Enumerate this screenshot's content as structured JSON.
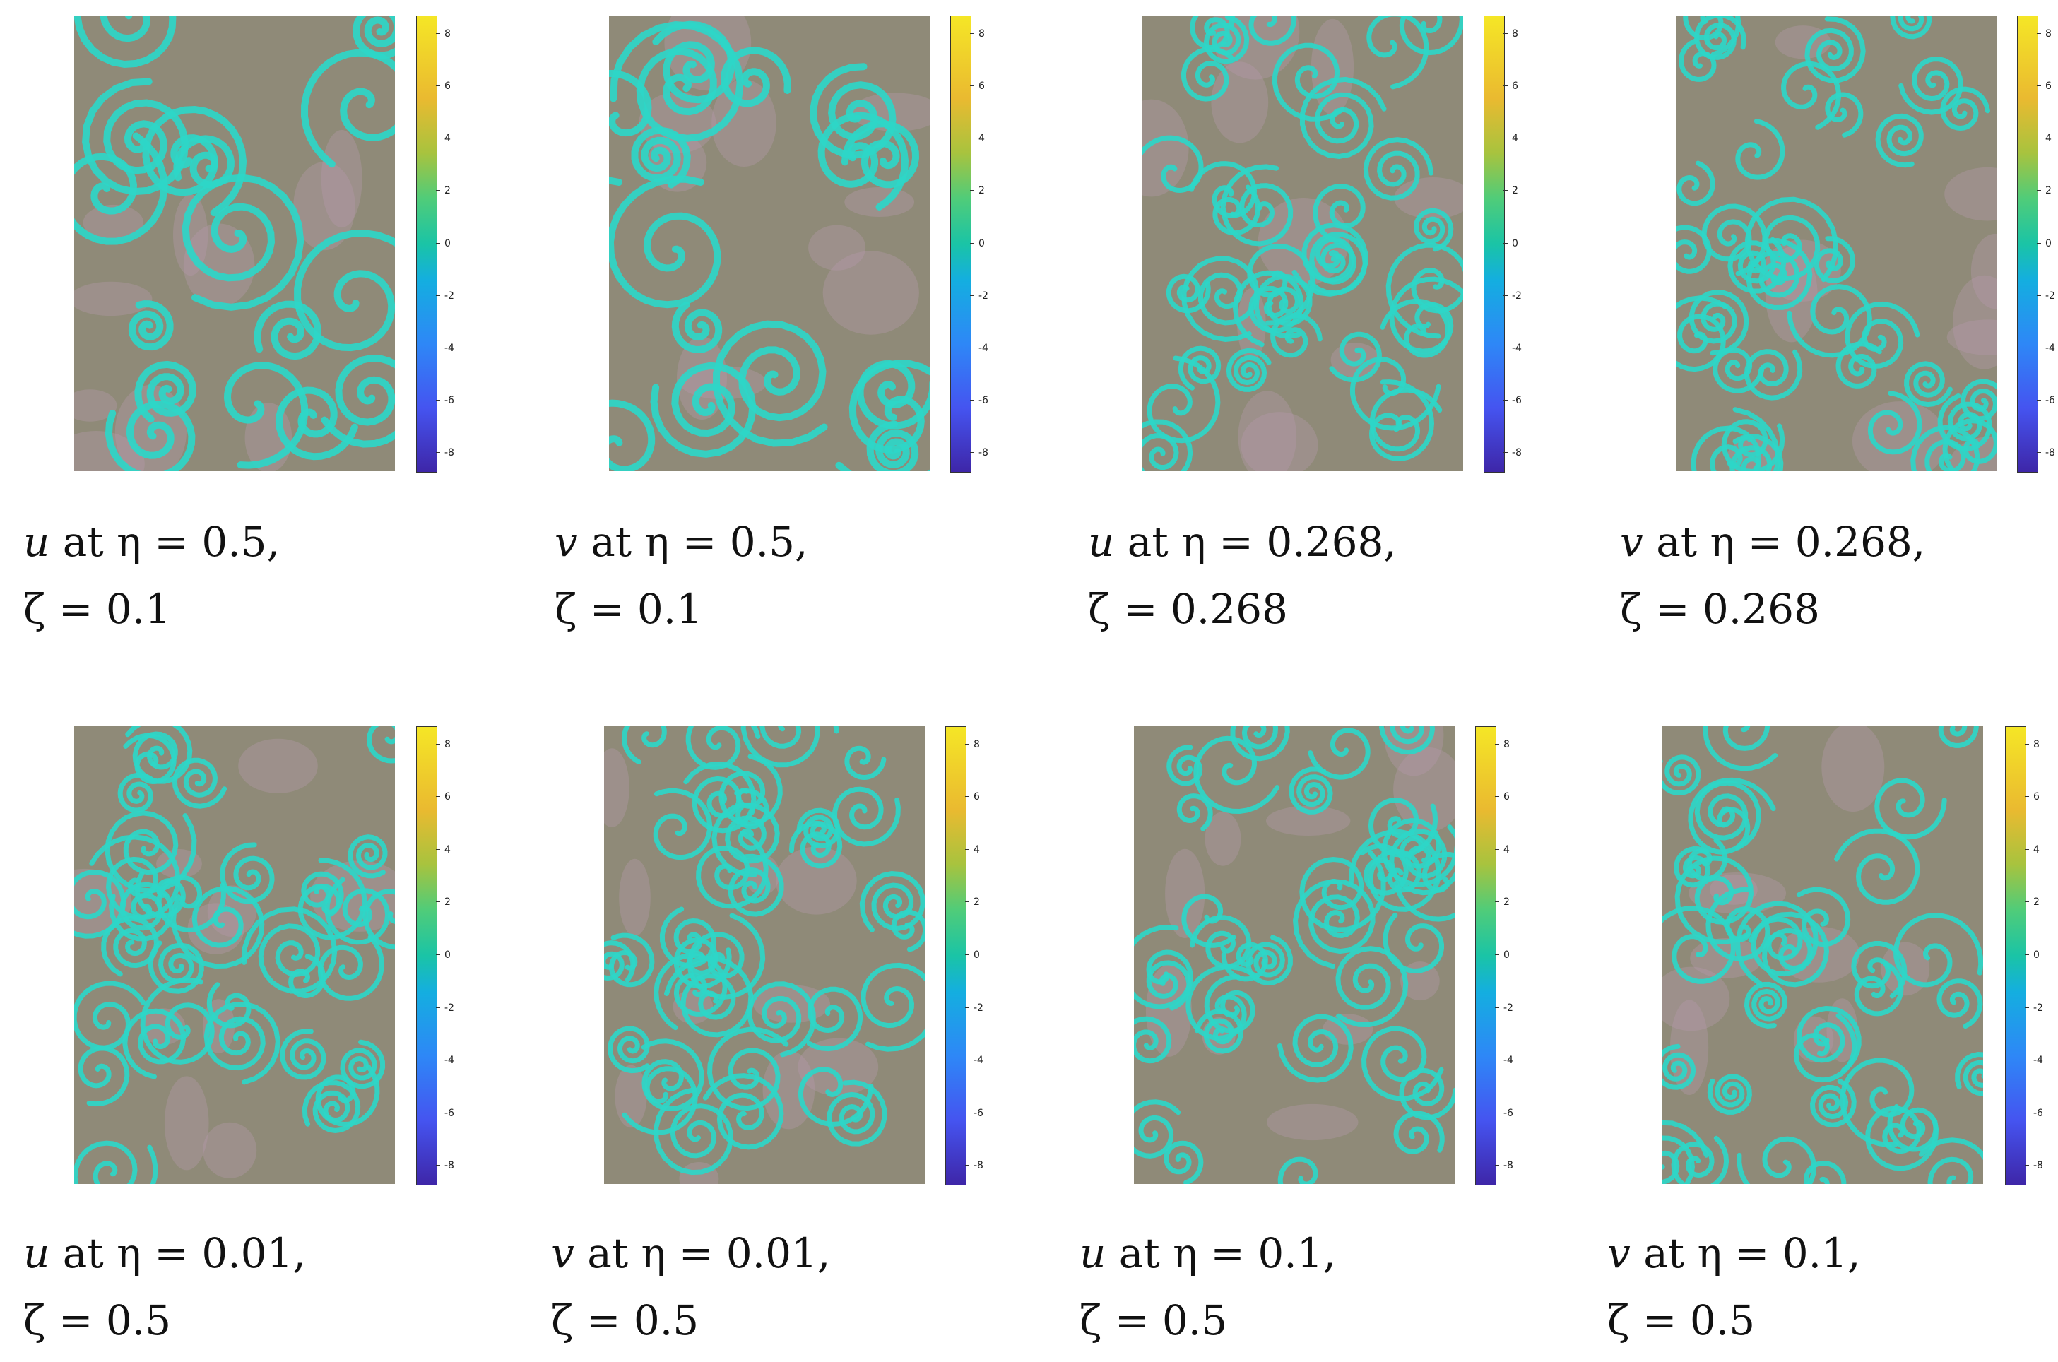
{
  "colorbar_ticks": [
    "8",
    "6",
    "4",
    "2",
    "0",
    "-2",
    "-4",
    "-6",
    "-8"
  ],
  "colormap": [
    "#3e26a8",
    "#4554f0",
    "#2e87f7",
    "#14aee0",
    "#1ac4a6",
    "#50cc79",
    "#a8c33e",
    "#eaba30",
    "#f5e626"
  ],
  "pattern_colors": {
    "background": "#8f8a78",
    "stripe": "#2ed6c8",
    "accent": "#b79ab0"
  },
  "panels": [
    {
      "var": "u",
      "line1": " at η = 0.5,",
      "line2": "ζ = 0.1"
    },
    {
      "var": "v",
      "line1": " at η = 0.5,",
      "line2": "ζ = 0.1"
    },
    {
      "var": "u",
      "line1": " at η = 0.268,",
      "line2": "ζ = 0.268"
    },
    {
      "var": "v",
      "line1": " at η = 0.268,",
      "line2": "ζ = 0.268"
    },
    {
      "var": "u",
      "line1": " at η = 0.01,",
      "line2": "ζ = 0.5"
    },
    {
      "var": "v",
      "line1": " at η = 0.01,",
      "line2": "ζ = 0.5"
    },
    {
      "var": "u",
      "line1": " at η = 0.1,",
      "line2": "ζ = 0.5"
    },
    {
      "var": "v",
      "line1": " at η = 0.1,",
      "line2": "ζ = 0.5"
    }
  ]
}
